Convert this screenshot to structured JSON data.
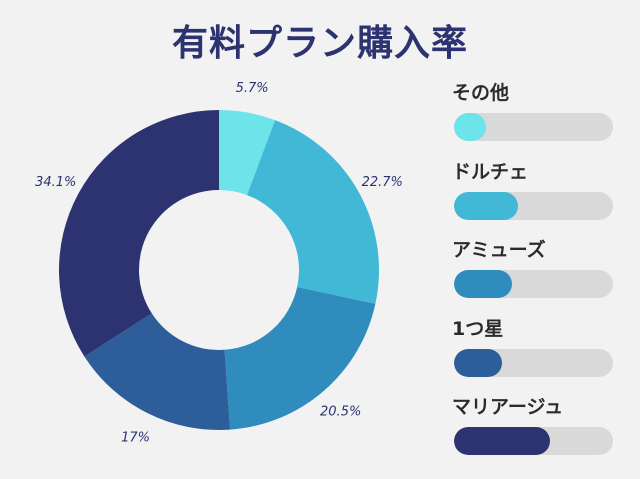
{
  "title": "有料プラン購入率",
  "chart_data": {
    "type": "pie",
    "title": "有料プラン購入率",
    "slices": [
      {
        "label": "その他",
        "value": 5.7,
        "display": "5.7%",
        "color": "#6de3ea"
      },
      {
        "label": "ドルチェ",
        "value": 22.7,
        "display": "22.7%",
        "color": "#40b8d6"
      },
      {
        "label": "アミューズ",
        "value": 20.5,
        "display": "20.5%",
        "color": "#2f8cbd"
      },
      {
        "label": "1つ星",
        "value": 17,
        "display": "17%",
        "color": "#2d5e99"
      },
      {
        "label": "マリアージュ",
        "value": 34.1,
        "display": "34.1%",
        "color": "#2d3270"
      }
    ],
    "legend": "right",
    "donut": true
  }
}
